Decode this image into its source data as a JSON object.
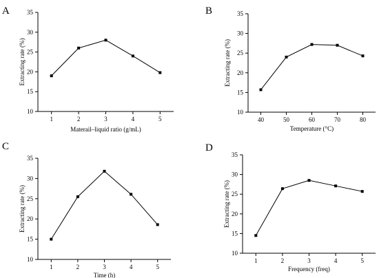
{
  "chart_data": [
    {
      "panel": "A",
      "type": "line",
      "x": [
        1,
        2,
        3,
        4,
        5
      ],
      "categories": [
        "1",
        "2",
        "3",
        "4",
        "5"
      ],
      "values": [
        19.0,
        26.0,
        28.0,
        24.0,
        19.8
      ],
      "xlabel": "Materail–liquid ratio (g/mL)",
      "ylabel": "Extracting rate (%)",
      "ylim": [
        10,
        35
      ],
      "yticks": [
        10,
        15,
        20,
        25,
        30,
        35
      ],
      "grid": false
    },
    {
      "panel": "B",
      "type": "line",
      "x": [
        40,
        50,
        60,
        70,
        80
      ],
      "categories": [
        "40",
        "50",
        "60",
        "70",
        "80"
      ],
      "values": [
        15.7,
        24.0,
        27.2,
        27.0,
        24.3
      ],
      "xlabel": "Temperature (°C)",
      "ylabel": "Extracting rate (%)",
      "ylim": [
        10,
        35
      ],
      "yticks": [
        10,
        15,
        20,
        25,
        30,
        35
      ],
      "grid": false
    },
    {
      "panel": "C",
      "type": "line",
      "x": [
        1,
        2,
        3,
        4,
        5
      ],
      "categories": [
        "1",
        "2",
        "3",
        "4",
        "5"
      ],
      "values": [
        15.0,
        25.5,
        31.8,
        26.1,
        18.6
      ],
      "xlabel": "Time (h)",
      "ylabel": "Extracting rate (%)",
      "ylim": [
        10,
        35
      ],
      "yticks": [
        10,
        15,
        20,
        25,
        30,
        35
      ],
      "grid": false
    },
    {
      "panel": "D",
      "type": "line",
      "x": [
        1,
        2,
        3,
        4,
        5
      ],
      "categories": [
        "1",
        "2",
        "3",
        "4",
        "5"
      ],
      "values": [
        14.5,
        26.4,
        28.5,
        27.1,
        25.7
      ],
      "xlabel": "Frequency (freq)",
      "ylabel": "Extracting rate (%)",
      "ylim": [
        10,
        35
      ],
      "yticks": [
        10,
        15,
        20,
        25,
        30,
        35
      ],
      "grid": false
    }
  ]
}
